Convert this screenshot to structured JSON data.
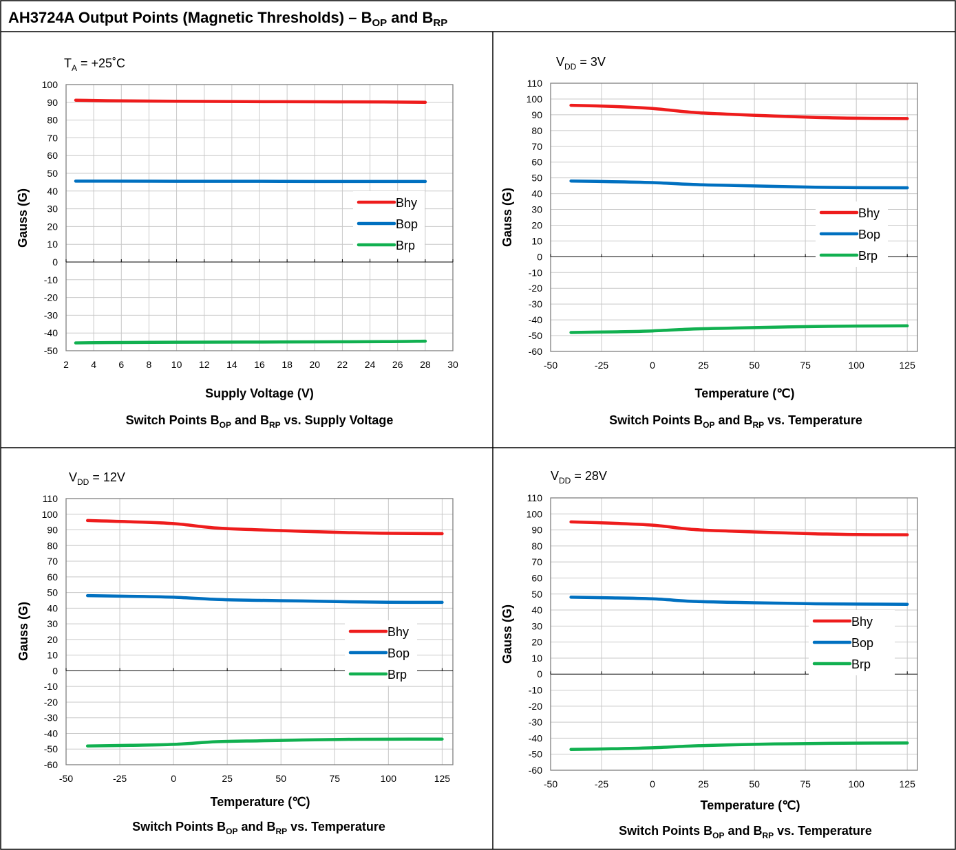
{
  "page_title": {
    "text": "AH3724A Output Points (Magnetic Thresholds) – B",
    "sub1": "OP",
    "mid": " and B",
    "sub2": "RP"
  },
  "colors": {
    "Bhy": "#ee1c1c",
    "Bop": "#0070c0",
    "Brp": "#11b050",
    "grid": "#c8c8c8",
    "frame": "#808080",
    "border": "#000000"
  },
  "chart_data": [
    {
      "type": "line",
      "condition": {
        "main": "T",
        "sub": "A",
        "rest": " = +25˚C"
      },
      "xlabel": "Supply Voltage (V)",
      "ylabel": "Gauss (G)",
      "caption": {
        "pre": "Switch Points B",
        "sub1": "OP",
        "mid": " and B",
        "sub2": "RP",
        "post": " vs. Supply Voltage"
      },
      "xlim": [
        2,
        30
      ],
      "ylim": [
        -50,
        100
      ],
      "xticks": [
        2,
        4,
        6,
        8,
        10,
        12,
        14,
        16,
        18,
        20,
        22,
        24,
        26,
        28,
        30
      ],
      "yticks": [
        100,
        90,
        80,
        70,
        60,
        50,
        40,
        30,
        20,
        10,
        0,
        -10,
        -20,
        -30,
        -40,
        -50
      ],
      "legend": "right",
      "series": [
        {
          "name": "Bhy",
          "x": [
            2.7,
            5,
            10,
            15,
            20,
            25,
            28
          ],
          "y": [
            91.2,
            90.9,
            90.6,
            90.4,
            90.3,
            90.2,
            90.0
          ]
        },
        {
          "name": "Bop",
          "x": [
            2.7,
            5,
            10,
            15,
            20,
            25,
            28
          ],
          "y": [
            45.6,
            45.6,
            45.5,
            45.5,
            45.4,
            45.4,
            45.4
          ]
        },
        {
          "name": "Brp",
          "x": [
            2.7,
            5,
            10,
            15,
            20,
            25,
            28
          ],
          "y": [
            -45.6,
            -45.4,
            -45.2,
            -45.1,
            -45.0,
            -44.9,
            -44.6
          ]
        }
      ]
    },
    {
      "type": "line",
      "condition": {
        "main": "V",
        "sub": "DD",
        "rest": " = 3V"
      },
      "xlabel": "Temperature (℃)",
      "ylabel": "Gauss (G)",
      "caption": {
        "pre": "Switch Points B",
        "sub1": "OP",
        "mid": " and B",
        "sub2": "RP",
        "post": " vs. Temperature"
      },
      "xlim": [
        -50,
        130
      ],
      "ylim": [
        -60,
        110
      ],
      "xticks": [
        -50,
        -25,
        0,
        25,
        50,
        75,
        100,
        125
      ],
      "yticks": [
        110,
        100,
        90,
        80,
        70,
        60,
        50,
        40,
        30,
        20,
        10,
        0,
        -10,
        -20,
        -30,
        -40,
        -50,
        -60
      ],
      "legend": "right",
      "series": [
        {
          "name": "Bhy",
          "x": [
            -40,
            -20,
            0,
            20,
            40,
            60,
            80,
            100,
            125
          ],
          "y": [
            96,
            95.3,
            94,
            91.5,
            90.2,
            89.2,
            88.3,
            87.8,
            87.6
          ]
        },
        {
          "name": "Bop",
          "x": [
            -40,
            -20,
            0,
            20,
            40,
            60,
            80,
            100,
            125
          ],
          "y": [
            48,
            47.6,
            47,
            45.8,
            45.2,
            44.6,
            44.1,
            43.8,
            43.7
          ]
        },
        {
          "name": "Brp",
          "x": [
            -40,
            -20,
            0,
            20,
            40,
            60,
            80,
            100,
            125
          ],
          "y": [
            -48,
            -47.6,
            -47,
            -45.8,
            -45.2,
            -44.6,
            -44.2,
            -43.9,
            -43.8
          ]
        }
      ]
    },
    {
      "type": "line",
      "condition": {
        "main": "V",
        "sub": "DD",
        "rest": " = 12V"
      },
      "xlabel": "Temperature (℃)",
      "ylabel": "Gauss (G)",
      "caption": {
        "pre": "Switch Points B",
        "sub1": "OP",
        "mid": " and B",
        "sub2": "RP",
        "post": " vs. Temperature"
      },
      "xlim": [
        -50,
        130
      ],
      "ylim": [
        -60,
        110
      ],
      "xticks": [
        -50,
        -25,
        0,
        25,
        50,
        75,
        100,
        125
      ],
      "yticks": [
        110,
        100,
        90,
        80,
        70,
        60,
        50,
        40,
        30,
        20,
        10,
        0,
        -10,
        -20,
        -30,
        -40,
        -50,
        -60
      ],
      "legend": "right",
      "series": [
        {
          "name": "Bhy",
          "x": [
            -40,
            -20,
            0,
            20,
            40,
            60,
            80,
            100,
            125
          ],
          "y": [
            96,
            95.2,
            94,
            91.2,
            90,
            89.1,
            88.3,
            87.8,
            87.6
          ]
        },
        {
          "name": "Bop",
          "x": [
            -40,
            -20,
            0,
            20,
            40,
            60,
            80,
            100,
            125
          ],
          "y": [
            48,
            47.6,
            47,
            45.6,
            45,
            44.6,
            44.1,
            43.8,
            43.7
          ]
        },
        {
          "name": "Brp",
          "x": [
            -40,
            -20,
            0,
            20,
            40,
            60,
            80,
            100,
            125
          ],
          "y": [
            -48,
            -47.6,
            -47,
            -45.3,
            -44.7,
            -44.2,
            -43.8,
            -43.7,
            -43.6
          ]
        }
      ]
    },
    {
      "type": "line",
      "condition": {
        "main": "V",
        "sub": "DD",
        "rest": " = 28V"
      },
      "xlabel": "Temperature (℃)",
      "ylabel": "Gauss (G)",
      "caption": {
        "pre": "Switch Points B",
        "sub1": "OP",
        "mid": " and B",
        "sub2": "RP",
        "post": " vs. Temperature"
      },
      "xlim": [
        -50,
        130
      ],
      "ylim": [
        -60,
        110
      ],
      "xticks": [
        -50,
        -25,
        0,
        25,
        50,
        75,
        100,
        125
      ],
      "yticks": [
        110,
        100,
        90,
        80,
        70,
        60,
        50,
        40,
        30,
        20,
        10,
        0,
        -10,
        -20,
        -30,
        -40,
        -50,
        -60
      ],
      "legend": "right",
      "series": [
        {
          "name": "Bhy",
          "x": [
            -40,
            -20,
            0,
            20,
            40,
            60,
            80,
            100,
            125
          ],
          "y": [
            95,
            94.2,
            93,
            90.3,
            89.2,
            88.3,
            87.6,
            87.1,
            87
          ]
        },
        {
          "name": "Bop",
          "x": [
            -40,
            -20,
            0,
            20,
            40,
            60,
            80,
            100,
            125
          ],
          "y": [
            48,
            47.6,
            47,
            45.4,
            44.8,
            44.3,
            43.9,
            43.7,
            43.6
          ]
        },
        {
          "name": "Brp",
          "x": [
            -40,
            -20,
            0,
            20,
            40,
            60,
            80,
            100,
            125
          ],
          "y": [
            -47,
            -46.6,
            -46,
            -44.8,
            -44.1,
            -43.6,
            -43.3,
            -43.1,
            -43
          ]
        }
      ]
    }
  ]
}
